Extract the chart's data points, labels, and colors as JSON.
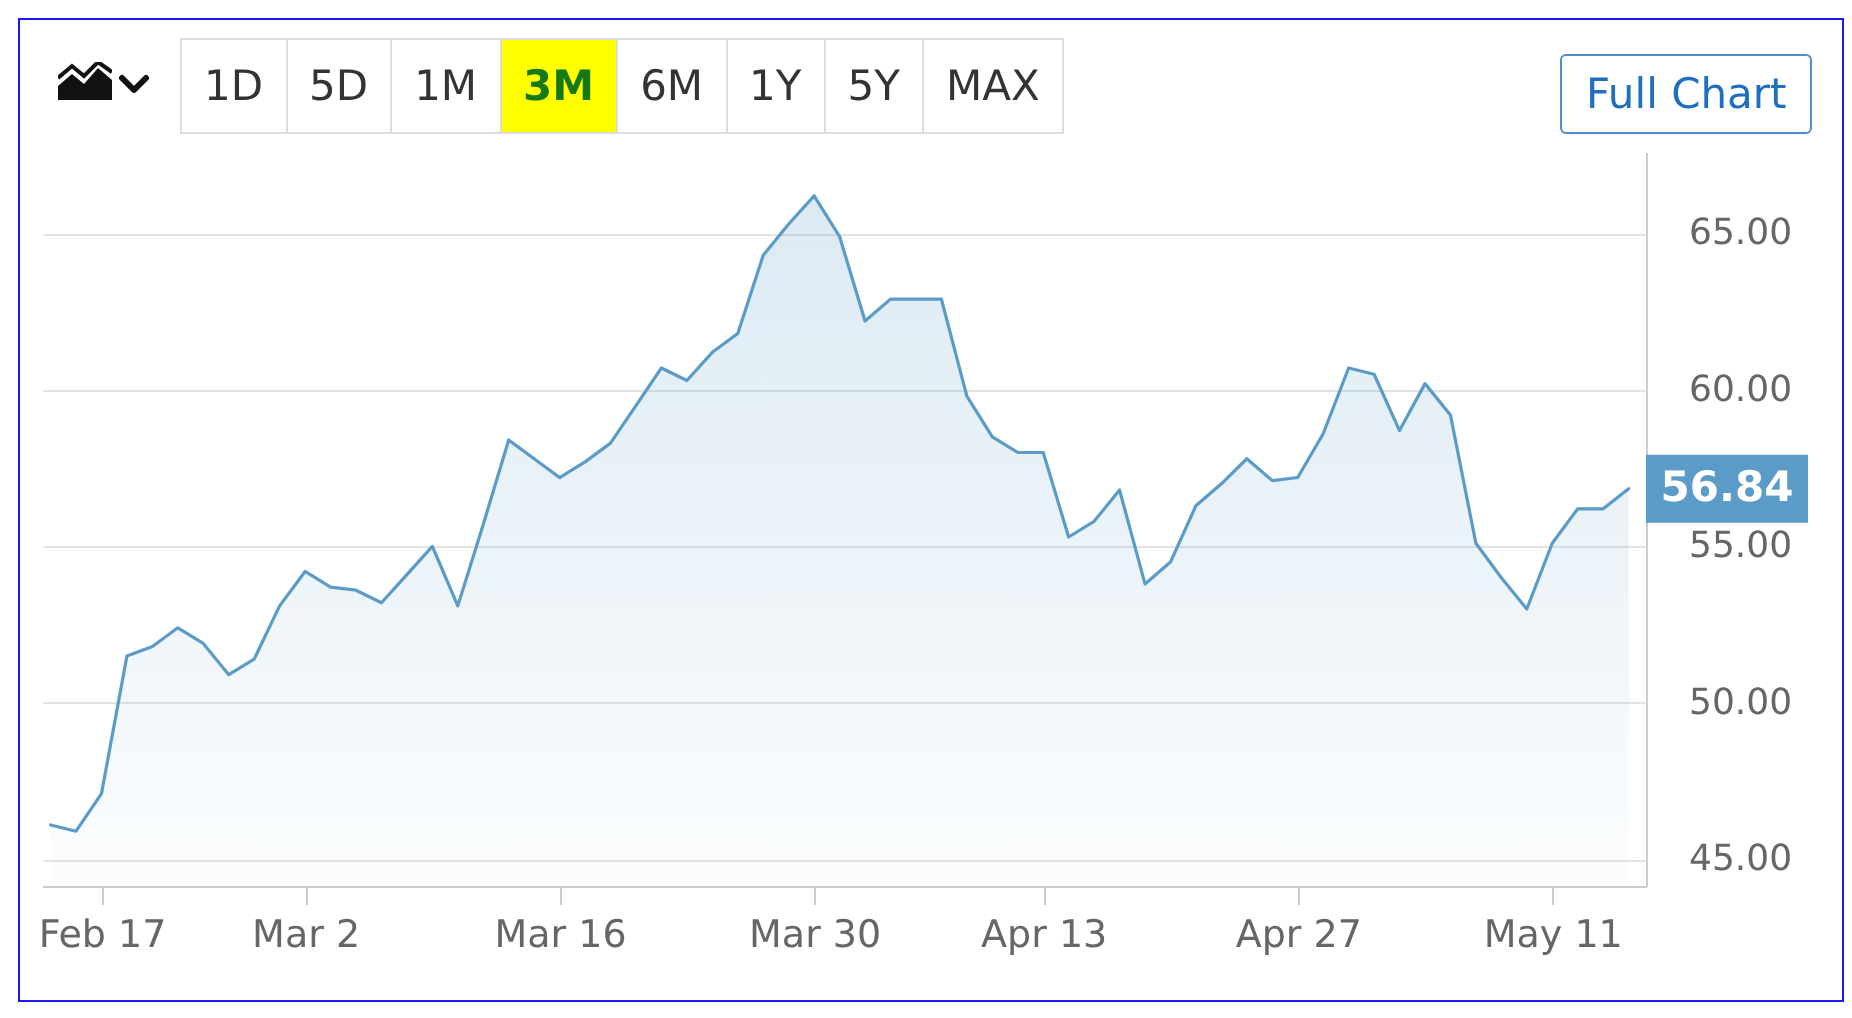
{
  "chart_data": {
    "type": "area",
    "categories": [
      null,
      null,
      "Feb 17",
      null,
      null,
      null,
      null,
      null,
      null,
      null,
      "Mar 2",
      null,
      null,
      null,
      null,
      null,
      null,
      null,
      null,
      null,
      "Mar 16",
      null,
      null,
      null,
      null,
      null,
      null,
      null,
      null,
      null,
      "Mar 30",
      null,
      null,
      null,
      null,
      null,
      null,
      null,
      null,
      "Apr 13",
      null,
      null,
      null,
      null,
      null,
      null,
      null,
      null,
      null,
      "Apr 27",
      null,
      null,
      null,
      null,
      null,
      null,
      null,
      null,
      null,
      "May 11",
      null,
      null,
      null
    ],
    "values": [
      46.1,
      45.9,
      47.1,
      51.5,
      51.8,
      52.4,
      51.9,
      50.9,
      51.4,
      53.1,
      54.2,
      53.7,
      53.6,
      53.2,
      54.1,
      55.0,
      53.1,
      55.7,
      58.4,
      57.8,
      57.2,
      57.7,
      58.3,
      59.5,
      60.7,
      60.3,
      61.2,
      61.8,
      64.3,
      65.3,
      66.2,
      64.9,
      62.2,
      62.9,
      62.9,
      62.9,
      59.8,
      58.5,
      58.0,
      58.0,
      55.3,
      55.8,
      56.8,
      53.8,
      54.5,
      56.3,
      57.0,
      57.8,
      57.1,
      57.2,
      58.6,
      60.7,
      60.5,
      58.7,
      60.2,
      59.2,
      55.1,
      54.0,
      53.0,
      55.1,
      56.2,
      56.2,
      56.84
    ],
    "color": "#5a9bc8",
    "value_labels": [
      null,
      null,
      null,
      null,
      null,
      null,
      null,
      null,
      null,
      null,
      null,
      null,
      null,
      null,
      null,
      null,
      null,
      null,
      null,
      null,
      null,
      null,
      null,
      null,
      null,
      null,
      null,
      null,
      null,
      null,
      null,
      null,
      null,
      null,
      null,
      null,
      null,
      null,
      null,
      null,
      null,
      null,
      null,
      null,
      null,
      null,
      null,
      null,
      null,
      null,
      null,
      null,
      null,
      null,
      null,
      null,
      null,
      null,
      null,
      null,
      null,
      null,
      "56.84"
    ],
    "ylim": [
      44.15,
      67.6
    ],
    "yticks": [
      {
        "value": 45,
        "label": "45.00"
      },
      {
        "value": 50,
        "label": "50.00"
      },
      {
        "value": 55,
        "label": "55.00"
      },
      {
        "value": 60,
        "label": "60.00"
      },
      {
        "value": 65,
        "label": "65.00"
      }
    ],
    "grid": "y",
    "annotations": [
      "1D",
      "5D",
      "1M",
      "3M",
      "6M",
      "1Y",
      "5Y",
      "MAX",
      "Full Chart"
    ]
  }
}
